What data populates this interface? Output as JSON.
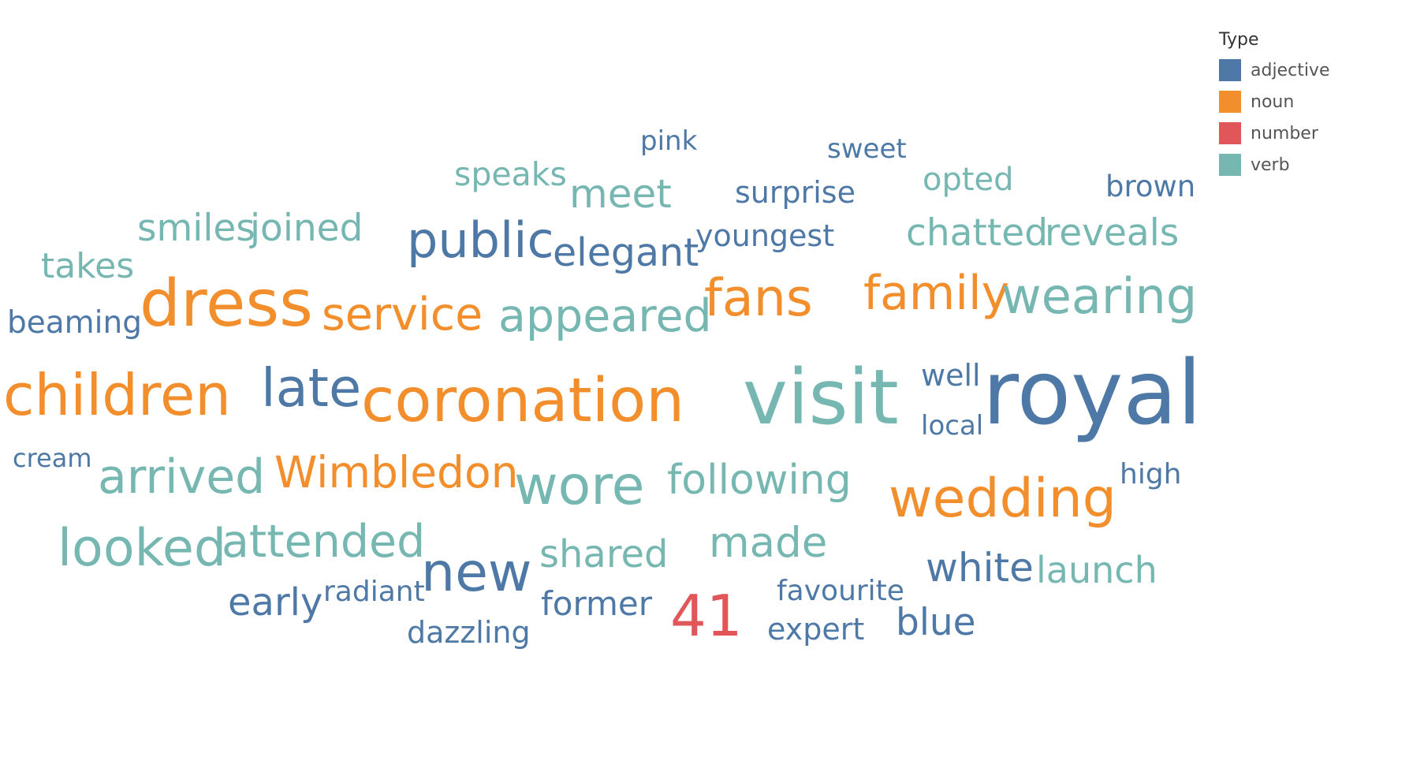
{
  "chart_data": {
    "type": "wordcloud",
    "legend": {
      "title": "Type",
      "placement": "top-right",
      "entries": [
        {
          "name": "adjective",
          "color": "#4E79A7"
        },
        {
          "name": "noun",
          "color": "#F28E2B"
        },
        {
          "name": "number",
          "color": "#E15759"
        },
        {
          "name": "verb",
          "color": "#76B7B2"
        }
      ]
    },
    "words": [
      {
        "text": "pink",
        "type": "adjective"
      },
      {
        "text": "sweet",
        "type": "adjective"
      },
      {
        "text": "speaks",
        "type": "verb"
      },
      {
        "text": "meet",
        "type": "verb"
      },
      {
        "text": "surprise",
        "type": "adjective"
      },
      {
        "text": "opted",
        "type": "verb"
      },
      {
        "text": "brown",
        "type": "adjective"
      },
      {
        "text": "smiles",
        "type": "verb"
      },
      {
        "text": "joined",
        "type": "verb"
      },
      {
        "text": "public",
        "type": "adjective"
      },
      {
        "text": "youngest",
        "type": "adjective"
      },
      {
        "text": "chatted",
        "type": "verb"
      },
      {
        "text": "reveals",
        "type": "verb"
      },
      {
        "text": "elegant",
        "type": "adjective"
      },
      {
        "text": "takes",
        "type": "verb"
      },
      {
        "text": "dress",
        "type": "noun"
      },
      {
        "text": "service",
        "type": "noun"
      },
      {
        "text": "appeared",
        "type": "verb"
      },
      {
        "text": "fans",
        "type": "noun"
      },
      {
        "text": "family",
        "type": "noun"
      },
      {
        "text": "wearing",
        "type": "verb"
      },
      {
        "text": "beaming",
        "type": "adjective"
      },
      {
        "text": "children",
        "type": "noun"
      },
      {
        "text": "late",
        "type": "adjective"
      },
      {
        "text": "coronation",
        "type": "noun"
      },
      {
        "text": "visit",
        "type": "verb"
      },
      {
        "text": "well",
        "type": "adjective"
      },
      {
        "text": "local",
        "type": "adjective"
      },
      {
        "text": "royal",
        "type": "adjective"
      },
      {
        "text": "cream",
        "type": "adjective"
      },
      {
        "text": "arrived",
        "type": "verb"
      },
      {
        "text": "Wimbledon",
        "type": "noun"
      },
      {
        "text": "wore",
        "type": "verb"
      },
      {
        "text": "following",
        "type": "verb"
      },
      {
        "text": "wedding",
        "type": "noun"
      },
      {
        "text": "high",
        "type": "adjective"
      },
      {
        "text": "looked",
        "type": "verb"
      },
      {
        "text": "attended",
        "type": "verb"
      },
      {
        "text": "new",
        "type": "adjective"
      },
      {
        "text": "shared",
        "type": "verb"
      },
      {
        "text": "made",
        "type": "verb"
      },
      {
        "text": "white",
        "type": "adjective"
      },
      {
        "text": "launch",
        "type": "verb"
      },
      {
        "text": "early",
        "type": "adjective"
      },
      {
        "text": "radiant",
        "type": "adjective"
      },
      {
        "text": "former",
        "type": "adjective"
      },
      {
        "text": "41",
        "type": "number"
      },
      {
        "text": "favourite",
        "type": "adjective"
      },
      {
        "text": "blue",
        "type": "adjective"
      },
      {
        "text": "dazzling",
        "type": "adjective"
      },
      {
        "text": "expert",
        "type": "adjective"
      }
    ]
  }
}
